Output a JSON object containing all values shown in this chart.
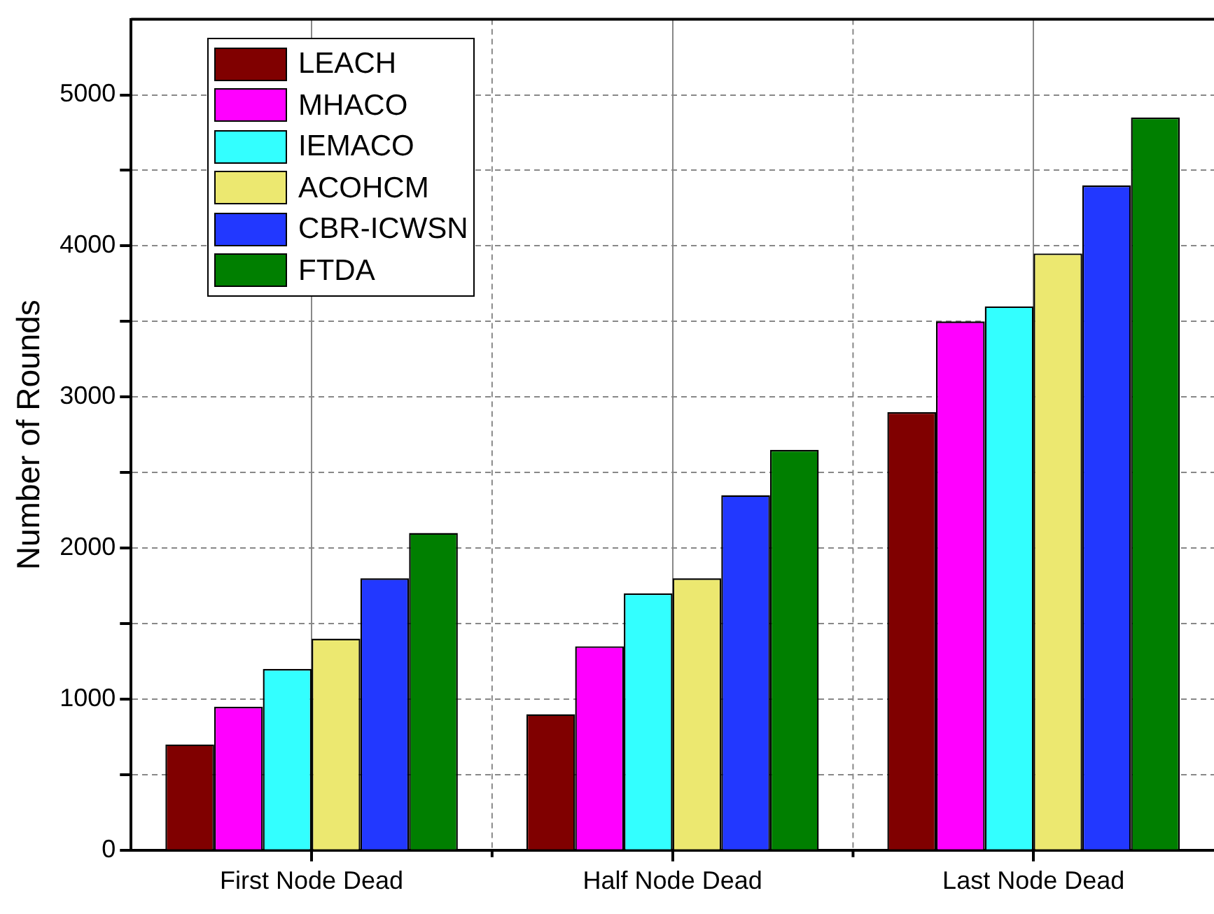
{
  "chart_data": {
    "type": "bar",
    "ylabel": "Number of Rounds",
    "categories": [
      "First Node Dead",
      "Half Node Dead",
      "Last Node Dead"
    ],
    "series": [
      {
        "name": "LEACH",
        "color": "#800000",
        "values": [
          700,
          900,
          2900
        ]
      },
      {
        "name": "MHACO",
        "color": "#ff00ff",
        "values": [
          950,
          1350,
          3500
        ]
      },
      {
        "name": "IEMACO",
        "color": "#33ffff",
        "values": [
          1200,
          1700,
          3600
        ]
      },
      {
        "name": "ACOHCM",
        "color": "#ece870",
        "values": [
          1400,
          1800,
          3950
        ]
      },
      {
        "name": "CBR-ICWSN",
        "color": "#2238ff",
        "values": [
          1800,
          2350,
          4400
        ]
      },
      {
        "name": "FTDA",
        "color": "#007f00",
        "values": [
          2100,
          2650,
          4850
        ]
      }
    ],
    "ylim": [
      0,
      5500
    ],
    "yticks": [
      0,
      {
        "value": 500,
        "label": null
      },
      1000,
      {
        "value": 1500,
        "label": null
      },
      2000,
      {
        "value": 2500,
        "label": null
      },
      3000,
      {
        "value": 3500,
        "label": null
      },
      4000,
      {
        "value": 4500,
        "label": null
      },
      5000
    ],
    "grid": true,
    "legend": "top left"
  }
}
